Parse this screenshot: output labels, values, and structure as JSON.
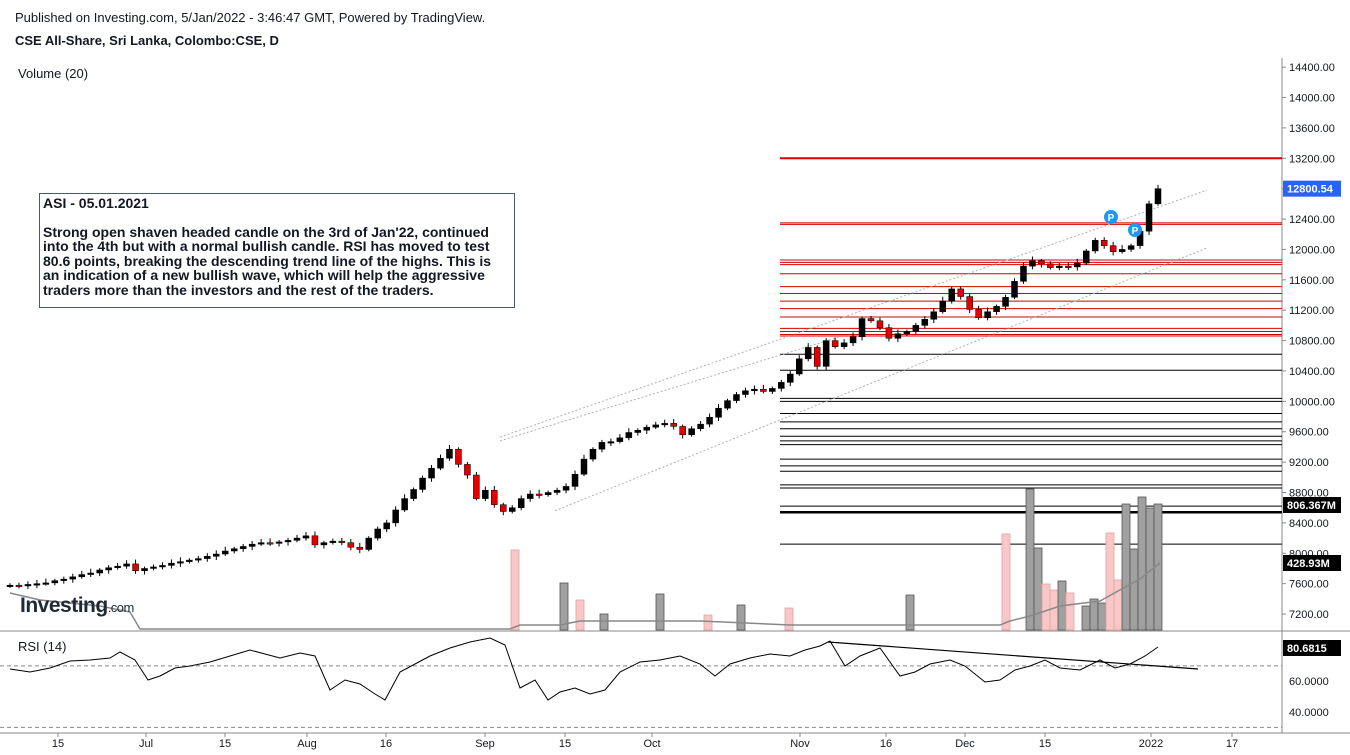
{
  "header": {
    "published": "Published on Investing.com, 5/Jan/2022 - 3:46:47 GMT, Powered by TradingView.",
    "symbol": "CSE All-Share, Sri Lanka, Colombo:CSE, D"
  },
  "volume_label": "Volume (20)",
  "rsi_label": "RSI (14)",
  "logo": {
    "text": "Investing",
    "suffix": ".com"
  },
  "note": {
    "title": "ASI - 05.01.2021",
    "body": "Strong open shaven headed candle on the 3rd of Jan'22, continued into the 4th but with a normal bullish candle. RSI has moved to test 80.6 points, breaking the descending trend line of the highs. This is an indication of a new bullish wave, which will help the aggressive traders more than the investors and the rest of the traders."
  },
  "chart_data": {
    "type": "candlestick",
    "price_axis": [
      "14400.00",
      "14000.00",
      "13600.00",
      "13200.00",
      "12800.00",
      "12400.00",
      "12000.00",
      "11600.00",
      "11200.00",
      "10800.00",
      "10400.00",
      "10000.00",
      "9600.00",
      "9200.00",
      "8800.00",
      "8400.00",
      "8000.00",
      "7600.00",
      "7200.00"
    ],
    "price_range": [
      6990,
      14520
    ],
    "last_price_label": "12800.54",
    "volume_labels": [
      "806.367M",
      "428.93M"
    ],
    "rsi_axis": [
      "60.0000",
      "40.0000"
    ],
    "rsi_last_label": "80.6815",
    "x_labels": [
      "15",
      "Jul",
      "15",
      "Aug",
      "16",
      "Sep",
      "15",
      "Oct",
      "Nov",
      "16",
      "Dec",
      "15",
      "2022",
      "17"
    ],
    "pivot_marker": "P",
    "closes": [
      7580,
      7570,
      7590,
      7600,
      7610,
      7640,
      7660,
      7690,
      7720,
      7740,
      7780,
      7810,
      7830,
      7860,
      7770,
      7800,
      7820,
      7840,
      7870,
      7890,
      7910,
      7930,
      7960,
      7990,
      8030,
      8060,
      8090,
      8120,
      8140,
      8130,
      8150,
      8170,
      8200,
      8230,
      8110,
      8140,
      8160,
      8140,
      8080,
      8050,
      8200,
      8320,
      8400,
      8570,
      8720,
      8840,
      8990,
      9120,
      9250,
      9370,
      9170,
      9030,
      8720,
      8830,
      8640,
      8550,
      8600,
      8720,
      8780,
      8770,
      8800,
      8830,
      8880,
      9040,
      9240,
      9370,
      9460,
      9470,
      9520,
      9590,
      9620,
      9660,
      9690,
      9710,
      9670,
      9560,
      9640,
      9700,
      9790,
      9910,
      10010,
      10090,
      10140,
      10160,
      10130,
      10170,
      10250,
      10360,
      10560,
      10710,
      10460,
      10800,
      10720,
      10770,
      10850,
      11090,
      11060,
      10970,
      10830,
      10890,
      10920,
      11000,
      11080,
      11180,
      11320,
      11480,
      11380,
      11210,
      11100,
      11180,
      11250,
      11370,
      11580,
      11780,
      11850,
      11810,
      11760,
      11780,
      11770,
      11820,
      11980,
      12120,
      12050,
      11970,
      12000,
      12050,
      12240,
      12600,
      12800
    ]
  }
}
